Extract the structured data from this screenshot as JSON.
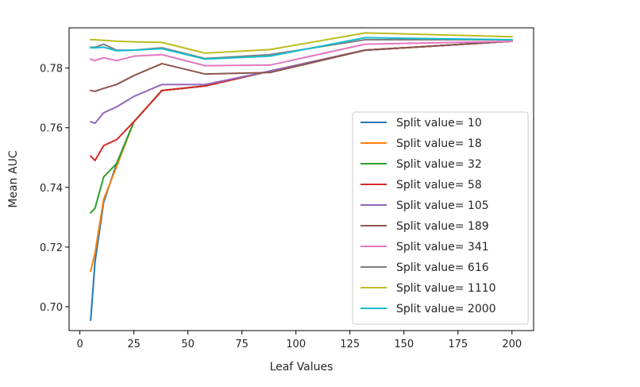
{
  "chart_data": {
    "type": "line",
    "title": "",
    "xlabel": "Leaf Values",
    "ylabel": "Mean AUC",
    "xlim": [
      -5,
      210
    ],
    "ylim": [
      0.692,
      0.7935
    ],
    "xticks": [
      0,
      25,
      50,
      75,
      100,
      125,
      150,
      175,
      200
    ],
    "yticks": [
      0.7,
      0.72,
      0.74,
      0.76,
      0.78
    ],
    "ytick_labels": [
      "0.70",
      "0.72",
      "0.74",
      "0.76",
      "0.78"
    ],
    "grid": false,
    "legend_position": "lower-right",
    "x": [
      5,
      7,
      11,
      17,
      25,
      38,
      58,
      88,
      132,
      200
    ],
    "series": [
      {
        "name": "Split value= 10",
        "color": "#1f77b4",
        "values": [
          0.6955,
          0.715,
          0.735,
          0.748,
          0.762,
          0.7725,
          0.774,
          0.779,
          0.786,
          0.789
        ]
      },
      {
        "name": "Split value= 18",
        "color": "#ff7f0e",
        "values": [
          0.712,
          0.718,
          0.736,
          0.747,
          0.762,
          0.7725,
          0.774,
          0.779,
          0.786,
          0.789
        ]
      },
      {
        "name": "Split value= 32",
        "color": "#2ca02c",
        "values": [
          0.7315,
          0.733,
          0.7435,
          0.748,
          0.762,
          0.7725,
          0.774,
          0.779,
          0.786,
          0.789
        ]
      },
      {
        "name": "Split value= 58",
        "color": "#d62728",
        "values": [
          0.7505,
          0.749,
          0.754,
          0.756,
          0.762,
          0.7725,
          0.774,
          0.779,
          0.786,
          0.789
        ]
      },
      {
        "name": "Split value= 105",
        "color": "#9467bd",
        "values": [
          0.762,
          0.7615,
          0.765,
          0.767,
          0.7705,
          0.7745,
          0.7745,
          0.779,
          0.786,
          0.789
        ]
      },
      {
        "name": "Split value= 189",
        "color": "#8c564b",
        "values": [
          0.7725,
          0.7722,
          0.7732,
          0.7745,
          0.7775,
          0.7815,
          0.778,
          0.7785,
          0.786,
          0.789
        ]
      },
      {
        "name": "Split value= 341",
        "color": "#e377c2",
        "values": [
          0.783,
          0.7825,
          0.7835,
          0.7825,
          0.784,
          0.7845,
          0.7808,
          0.781,
          0.788,
          0.789
        ]
      },
      {
        "name": "Split value= 616",
        "color": "#7f7f7f",
        "values": [
          0.787,
          0.787,
          0.788,
          0.786,
          0.786,
          0.7868,
          0.7832,
          0.7845,
          0.7895,
          0.7895
        ]
      },
      {
        "name": "Split value= 1110",
        "color": "#bcbd22",
        "values": [
          0.7895,
          0.7895,
          0.7893,
          0.789,
          0.7888,
          0.7886,
          0.785,
          0.7862,
          0.7918,
          0.7905
        ]
      },
      {
        "name": "Split value= 2000",
        "color": "#17becf",
        "values": [
          0.7868,
          0.7868,
          0.787,
          0.7858,
          0.786,
          0.7865,
          0.783,
          0.784,
          0.7902,
          0.7895
        ]
      }
    ]
  }
}
